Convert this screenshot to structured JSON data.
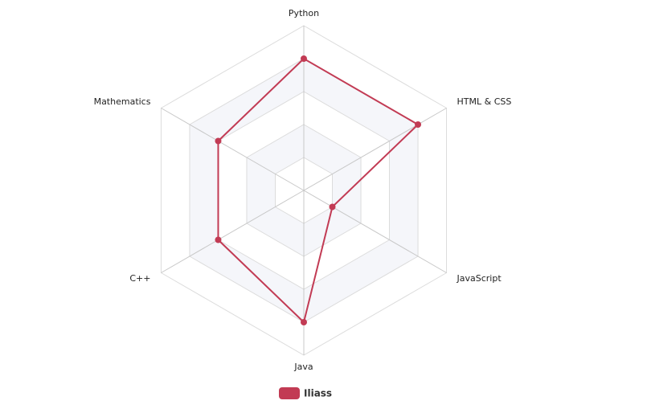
{
  "chart_data": {
    "type": "radar",
    "title": "",
    "axes": [
      "Python",
      "HTML & CSS",
      "JavaScript",
      "Java",
      "C++",
      "Mathematics"
    ],
    "max_value": 5,
    "levels": 5,
    "series": [
      {
        "name": "Iliass",
        "values": [
          4,
          4,
          1,
          4,
          3,
          3
        ],
        "color": "#c23b54"
      }
    ],
    "legend_position": "bottom",
    "grid": true,
    "band_colors": [
      "#f5f6fa",
      "#ffffff"
    ],
    "grid_line_color": "#dcdcdc"
  }
}
